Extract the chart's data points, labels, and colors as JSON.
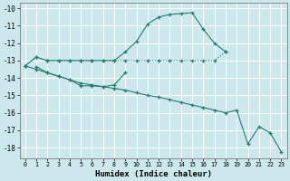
{
  "xlabel": "Humidex (Indice chaleur)",
  "bg_color": "#cce8ec",
  "grid_color": "#ffffff",
  "line_color": "#2a7a70",
  "xlim": [
    -0.5,
    23.5
  ],
  "ylim": [
    -18.6,
    -9.7
  ],
  "xticks": [
    0,
    1,
    2,
    3,
    4,
    5,
    6,
    7,
    8,
    9,
    10,
    11,
    12,
    13,
    14,
    15,
    16,
    17,
    18,
    19,
    20,
    21,
    22,
    23
  ],
  "yticks": [
    -10,
    -11,
    -12,
    -13,
    -14,
    -15,
    -16,
    -17,
    -18
  ],
  "series": {
    "line1": {
      "x": [
        0,
        1,
        2,
        3,
        4,
        5,
        6,
        7,
        8,
        9,
        10,
        11,
        12,
        13,
        14,
        15,
        16,
        17,
        18
      ],
      "y": [
        -13.3,
        -12.8,
        -13.0,
        -13.0,
        -13.0,
        -13.0,
        -13.0,
        -13.0,
        -13.0,
        -12.5,
        -11.9,
        -10.9,
        -10.5,
        -10.35,
        -10.3,
        -10.25,
        -11.2,
        -12.0,
        -12.5
      ]
    },
    "line2": {
      "x": [
        0,
        1,
        2,
        3,
        4,
        5,
        6,
        7,
        8,
        9,
        10,
        11,
        12,
        13,
        14,
        15,
        16,
        17,
        18
      ],
      "y": [
        -13.3,
        -12.8,
        -13.0,
        -13.0,
        -13.0,
        -13.0,
        -13.0,
        -13.0,
        -13.0,
        -13.0,
        -13.0,
        -13.0,
        -13.0,
        -13.0,
        -13.0,
        -13.0,
        -13.0,
        -13.0,
        -12.5
      ]
    },
    "line3": {
      "x": [
        0,
        1,
        2,
        3,
        4,
        5,
        6,
        7,
        8,
        9,
        10,
        11,
        12,
        13,
        14,
        15,
        16,
        17,
        18,
        19,
        20,
        21,
        22,
        23
      ],
      "y": [
        -13.3,
        -13.5,
        -13.7,
        -13.9,
        -14.1,
        -14.3,
        -14.4,
        -14.5,
        -14.6,
        -14.7,
        -14.85,
        -15.0,
        -15.1,
        -15.25,
        -15.4,
        -15.55,
        -15.7,
        -15.85,
        -16.0,
        -15.85,
        -17.8,
        -16.8,
        -17.15,
        -18.25
      ]
    },
    "line4": {
      "x": [
        1,
        2,
        3,
        4,
        5,
        6,
        7,
        8,
        9
      ],
      "y": [
        -13.35,
        -13.7,
        -13.9,
        -14.1,
        -14.45,
        -14.45,
        -14.5,
        -14.4,
        -13.7
      ]
    }
  }
}
